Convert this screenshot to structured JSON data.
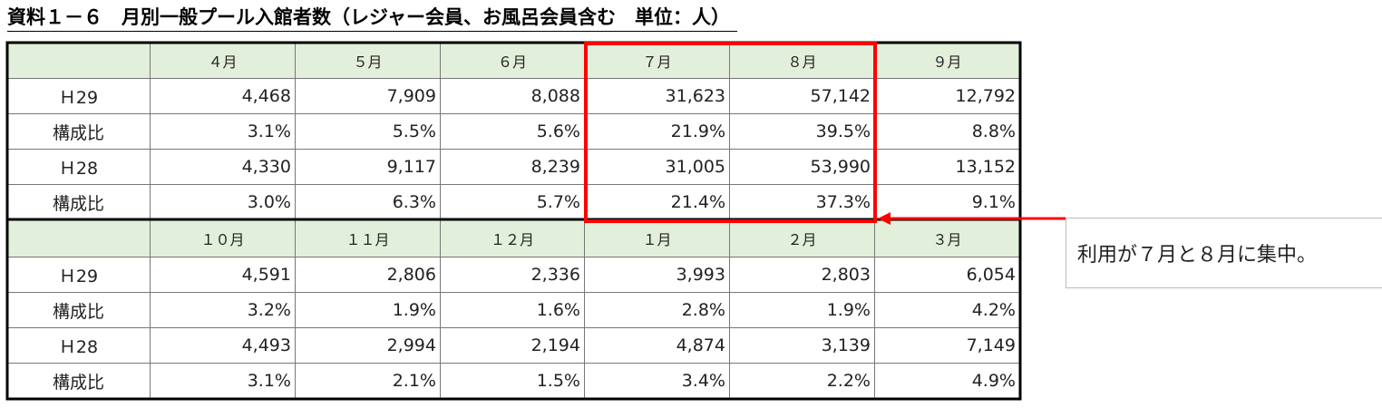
{
  "title": "資料１－６　月別一般プール入館者数（レジャー会員、お風呂会員含む　単位：人）",
  "table": {
    "blocks": [
      {
        "header": [
          "４月",
          "５月",
          "６月",
          "７月",
          "８月",
          "９月"
        ],
        "rows": [
          {
            "label": "Ｈ29",
            "cells": [
              "4,468",
              "7,909",
              "8,088",
              "31,623",
              "57,142",
              "12,792"
            ]
          },
          {
            "label": "構成比",
            "cells": [
              "3.1%",
              "5.5%",
              "5.6%",
              "21.9%",
              "39.5%",
              "8.8%"
            ]
          },
          {
            "label": "Ｈ28",
            "cells": [
              "4,330",
              "9,117",
              "8,239",
              "31,005",
              "53,990",
              "13,152"
            ]
          },
          {
            "label": "構成比",
            "cells": [
              "3.0%",
              "6.3%",
              "5.7%",
              "21.4%",
              "37.3%",
              "9.1%"
            ]
          }
        ]
      },
      {
        "header": [
          "１０月",
          "１１月",
          "１２月",
          "１月",
          "２月",
          "３月"
        ],
        "rows": [
          {
            "label": "Ｈ29",
            "cells": [
              "4,591",
              "2,806",
              "2,336",
              "3,993",
              "2,803",
              "6,054"
            ]
          },
          {
            "label": "構成比",
            "cells": [
              "3.2%",
              "1.9%",
              "1.6%",
              "2.8%",
              "1.9%",
              "4.2%"
            ]
          },
          {
            "label": "Ｈ28",
            "cells": [
              "4,493",
              "2,994",
              "2,194",
              "4,874",
              "3,139",
              "7,149"
            ]
          },
          {
            "label": "構成比",
            "cells": [
              "3.1%",
              "2.1%",
              "1.5%",
              "3.4%",
              "2.2%",
              "4.9%"
            ]
          }
        ]
      }
    ]
  },
  "callout": "利用が７月と８月に集中。"
}
